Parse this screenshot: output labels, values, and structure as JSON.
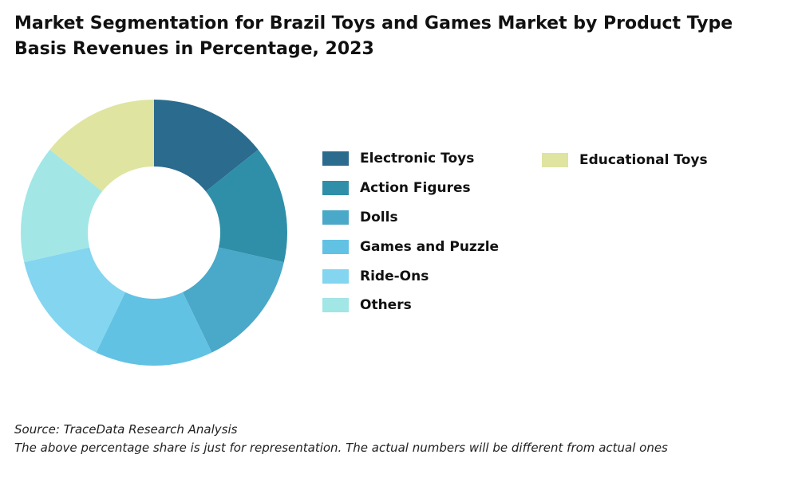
{
  "title": "Market Segmentation for Brazil Toys and Games Market by Product Type Basis Revenues in Percentage, 2023",
  "footer": {
    "source": "Source: TraceData Research Analysis",
    "note": "The above percentage share is just for representation. The actual numbers will be different from actual ones"
  },
  "chart_data": {
    "type": "pie",
    "donut": true,
    "title": "Market Segmentation for Brazil Toys and Games Market by Product Type Basis Revenues in Percentage, 2023",
    "categories": [
      "Electronic Toys",
      "Action Figures",
      "Dolls",
      "Games and Puzzle",
      "Ride-Ons",
      "Others",
      "Educational Toys"
    ],
    "values": [
      14.29,
      14.29,
      14.29,
      14.29,
      14.29,
      14.29,
      14.29
    ],
    "colors": [
      "#2a6b8e",
      "#2f8fa8",
      "#4aa8c8",
      "#62c2e4",
      "#84d5ef",
      "#a2e6e6",
      "#dfe4a0"
    ],
    "legend_position": "right"
  }
}
